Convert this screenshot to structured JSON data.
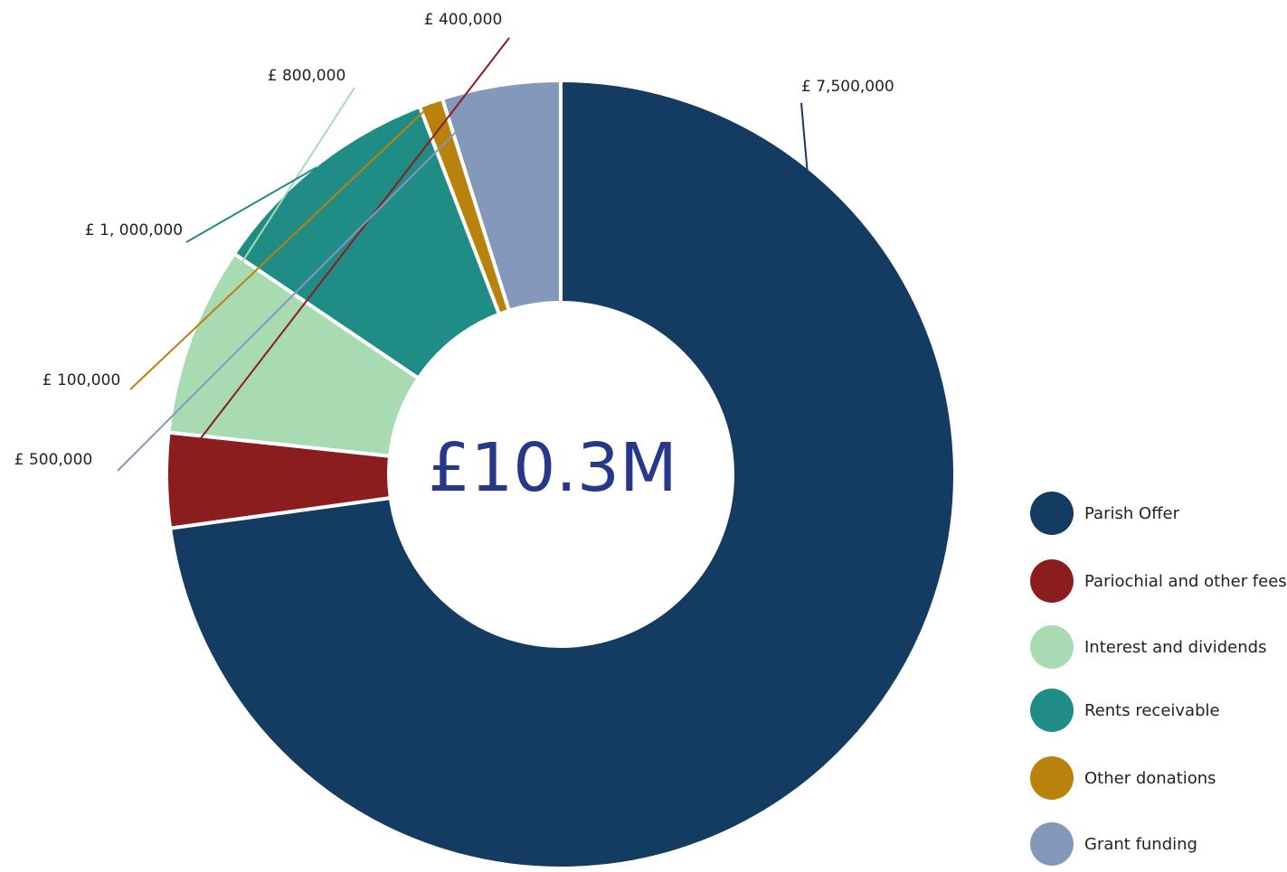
{
  "chart_data": {
    "type": "pie",
    "variant": "donut",
    "center_label": "£10.3M",
    "categories": [
      "Parish Offer",
      "Pariochial and other fees",
      "Interest and dividends",
      "Rents receivable",
      "Other donations",
      "Grant funding"
    ],
    "values": [
      7500000,
      400000,
      800000,
      1000000,
      100000,
      500000
    ],
    "data_labels": [
      "£ 7,500,000",
      "£ 400,000",
      "£ 800,000",
      "£ 1, 000,000",
      "£ 100,000",
      "£ 500,000"
    ],
    "colors": [
      "#143b61",
      "#8b1d1f",
      "#a8dbb2",
      "#1f8c85",
      "#b8820d",
      "#8398bb"
    ],
    "legend_position": "right"
  }
}
